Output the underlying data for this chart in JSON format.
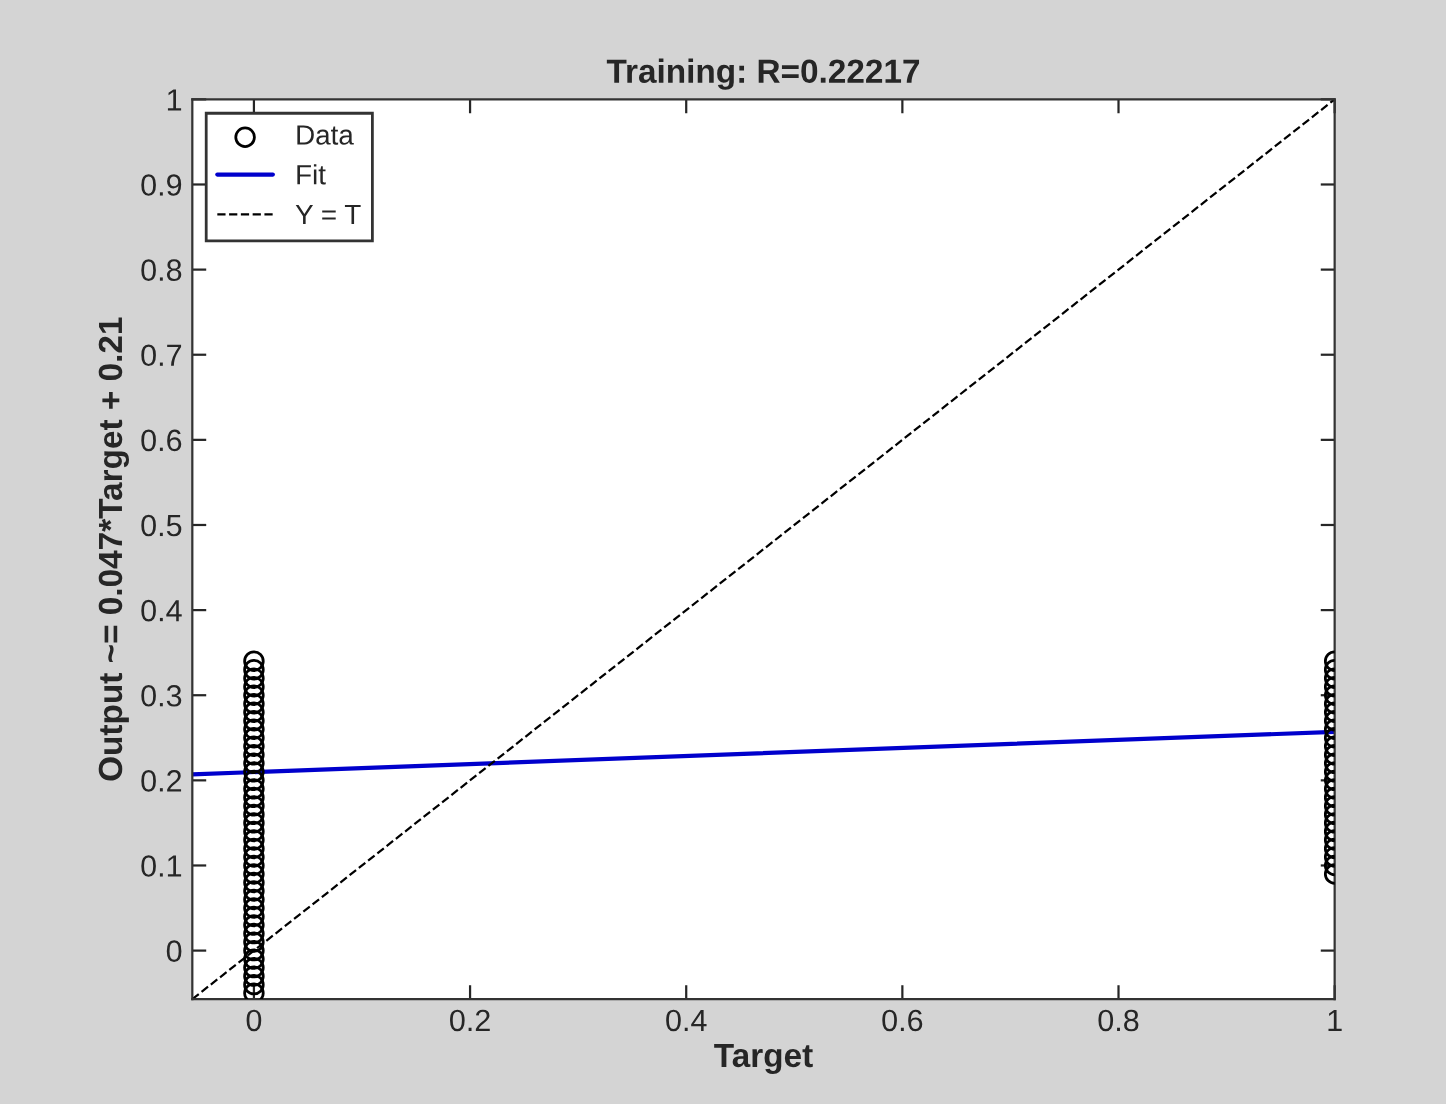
{
  "chart_data": {
    "type": "scatter",
    "title": "Training: R=0.22217",
    "xlabel": "Target",
    "ylabel": "Output ~= 0.047*Target + 0.21",
    "xlim": [
      -0.057,
      1
    ],
    "ylim": [
      -0.057,
      1
    ],
    "xticks": [
      0,
      0.2,
      0.4,
      0.6,
      0.8,
      1
    ],
    "yticks": [
      0,
      0.1,
      0.2,
      0.3,
      0.4,
      0.5,
      0.6,
      0.7,
      0.8,
      0.9,
      1
    ],
    "grid": false,
    "legend": "top left",
    "series": [
      {
        "name": "Data",
        "marker": "circle",
        "color": "#000000",
        "x": [
          0,
          0,
          0,
          0,
          0,
          0,
          0,
          0,
          0,
          0,
          0,
          0,
          0,
          0,
          0,
          0,
          0,
          0,
          0,
          0,
          0,
          0,
          0,
          0,
          0,
          0,
          0,
          0,
          0,
          0,
          0,
          0,
          0,
          0,
          0,
          0,
          0,
          0,
          0,
          0,
          1,
          1,
          1,
          1,
          1,
          1,
          1,
          1,
          1,
          1,
          1,
          1,
          1,
          1,
          1,
          1,
          1,
          1,
          1,
          1,
          1,
          1,
          1,
          1,
          1,
          1
        ],
        "values": [
          -0.05,
          -0.04,
          -0.03,
          -0.02,
          -0.01,
          0,
          0.01,
          0.02,
          0.03,
          0.04,
          0.05,
          0.06,
          0.07,
          0.08,
          0.09,
          0.1,
          0.11,
          0.12,
          0.13,
          0.14,
          0.15,
          0.16,
          0.17,
          0.18,
          0.19,
          0.2,
          0.21,
          0.22,
          0.23,
          0.24,
          0.25,
          0.26,
          0.27,
          0.28,
          0.29,
          0.3,
          0.31,
          0.32,
          0.33,
          0.34,
          0.09,
          0.1,
          0.11,
          0.12,
          0.13,
          0.14,
          0.15,
          0.16,
          0.17,
          0.18,
          0.19,
          0.2,
          0.21,
          0.22,
          0.23,
          0.24,
          0.25,
          0.26,
          0.27,
          0.28,
          0.29,
          0.3,
          0.31,
          0.32,
          0.33,
          0.34
        ]
      },
      {
        "name": "Fit",
        "type": "line",
        "line_style": "solid",
        "color": "#0000cc",
        "x": [
          -0.057,
          1
        ],
        "values": [
          0.207,
          0.257
        ]
      },
      {
        "name": "Y = T",
        "type": "line",
        "line_style": "dashed",
        "color": "#000000",
        "x": [
          -0.057,
          1
        ],
        "values": [
          -0.057,
          1
        ]
      }
    ]
  }
}
